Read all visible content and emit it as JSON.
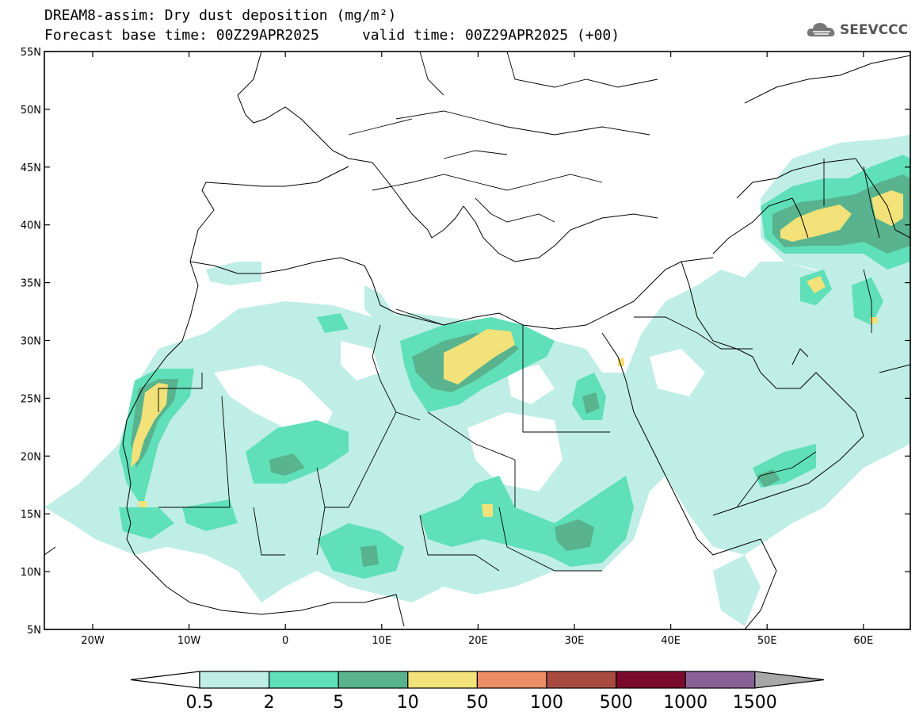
{
  "title_line1": "DREAM8-assim: Dry dust deposition (mg/m²)",
  "title_line2_base": "Forecast base time: 00Z29APR2025",
  "title_line2_valid": "valid time: 00Z29APR2025 (+00)",
  "logo": {
    "icon": "cloud-logo-icon",
    "text": "SEEVCCC"
  },
  "axes": {
    "lat_labels": [
      "55N",
      "50N",
      "45N",
      "40N",
      "35N",
      "30N",
      "25N",
      "20N",
      "15N",
      "10N",
      "5N"
    ],
    "lon_labels": [
      "20W",
      "10W",
      "0",
      "10E",
      "20E",
      "30E",
      "40E",
      "50E",
      "60E"
    ]
  },
  "colorbar": {
    "labels": [
      "0.5",
      "2",
      "5",
      "10",
      "50",
      "100",
      "500",
      "1000",
      "1500"
    ],
    "colors": [
      "#bfeee6",
      "#5fe0b8",
      "#58b38e",
      "#f2e279",
      "#eb8d66",
      "#a84a3f",
      "#7a0b2c",
      "#8a6196",
      "#a8a8a8"
    ]
  }
}
